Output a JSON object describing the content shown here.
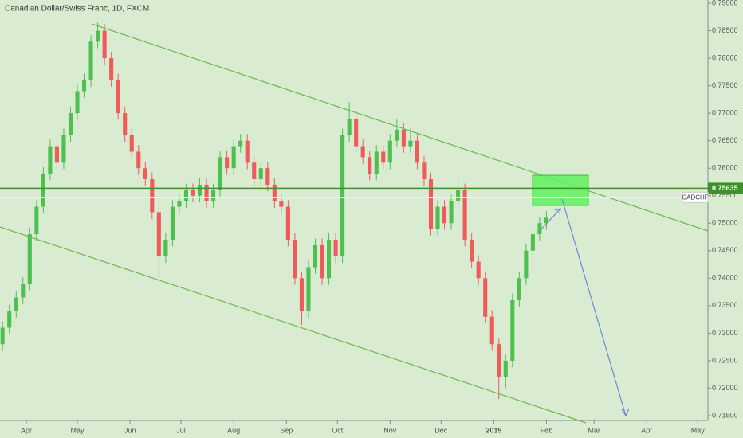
{
  "chart_data": {
    "type": "candlestick",
    "title": "Canadian Dollar/Swiss Franc, 1D, FXCM",
    "symbol": "CADCHF",
    "up_color": "#4fbf4f",
    "down_color": "#ef5b5b",
    "xlim": [
      -15.5,
      401
    ],
    "xticks": [
      {
        "value": 0,
        "label": "Apr"
      },
      {
        "value": 30,
        "label": "May"
      },
      {
        "value": 61,
        "label": "Jun"
      },
      {
        "value": 91,
        "label": "Jul"
      },
      {
        "value": 122,
        "label": "Aug"
      },
      {
        "value": 153,
        "label": "Sep"
      },
      {
        "value": 183,
        "label": "Oct"
      },
      {
        "value": 214,
        "label": "Nov"
      },
      {
        "value": 244,
        "label": "Dec"
      },
      {
        "value": 275,
        "label": "2019"
      },
      {
        "value": 306,
        "label": "Feb"
      },
      {
        "value": 334,
        "label": "Mar"
      },
      {
        "value": 365,
        "label": "Apr"
      },
      {
        "value": 395,
        "label": "May"
      }
    ],
    "ylim": [
      0.715,
      0.79
    ],
    "yticks": [
      {
        "value": 0.79,
        "label": "0.79000"
      },
      {
        "value": 0.785,
        "label": "0.78500"
      },
      {
        "value": 0.78,
        "label": "0.78000"
      },
      {
        "value": 0.775,
        "label": "0.77500"
      },
      {
        "value": 0.77,
        "label": "0.77000"
      },
      {
        "value": 0.765,
        "label": "0.76500"
      },
      {
        "value": 0.76,
        "label": "0.76000"
      },
      {
        "value": 0.755,
        "label": "0.75500"
      },
      {
        "value": 0.75,
        "label": "0.75000"
      },
      {
        "value": 0.745,
        "label": "0.74500"
      },
      {
        "value": 0.74,
        "label": "0.74000"
      },
      {
        "value": 0.735,
        "label": "0.73500"
      },
      {
        "value": 0.73,
        "label": "0.73000"
      },
      {
        "value": 0.725,
        "label": "0.72500"
      },
      {
        "value": 0.72,
        "label": "0.72000"
      },
      {
        "value": 0.715,
        "label": "0.71500"
      }
    ],
    "price_line": {
      "value": 0.75635,
      "label": "0.75635"
    },
    "x": [
      -14,
      -10,
      -6,
      -2,
      2,
      6,
      10,
      14,
      18,
      22,
      26,
      30,
      34,
      38,
      42,
      46,
      50,
      54,
      58,
      62,
      66,
      70,
      74,
      78,
      82,
      86,
      90,
      94,
      98,
      102,
      106,
      110,
      114,
      118,
      122,
      126,
      130,
      134,
      138,
      142,
      146,
      150,
      154,
      158,
      162,
      166,
      170,
      174,
      178,
      182,
      186,
      190,
      194,
      198,
      202,
      206,
      210,
      214,
      218,
      222,
      226,
      230,
      234,
      238,
      242,
      246,
      250,
      254,
      258,
      262,
      266,
      270,
      274,
      278,
      282,
      286,
      290,
      294,
      298,
      302,
      306
    ],
    "open": [
      0.728,
      0.731,
      0.734,
      0.7365,
      0.739,
      0.748,
      0.753,
      0.759,
      0.764,
      0.761,
      0.766,
      0.77,
      0.774,
      0.776,
      0.783,
      0.785,
      0.78,
      0.776,
      0.77,
      0.766,
      0.763,
      0.76,
      0.758,
      0.752,
      0.744,
      0.747,
      0.753,
      0.754,
      0.756,
      0.755,
      0.757,
      0.754,
      0.756,
      0.762,
      0.76,
      0.764,
      0.765,
      0.761,
      0.758,
      0.76,
      0.757,
      0.754,
      0.753,
      0.747,
      0.74,
      0.734,
      0.742,
      0.746,
      0.74,
      0.747,
      0.744,
      0.766,
      0.769,
      0.764,
      0.762,
      0.759,
      0.763,
      0.761,
      0.765,
      0.767,
      0.764,
      0.765,
      0.761,
      0.758,
      0.749,
      0.753,
      0.75,
      0.754,
      0.756,
      0.747,
      0.743,
      0.74,
      0.733,
      0.728,
      0.722,
      0.725,
      0.736,
      0.74,
      0.745,
      0.748,
      0.75
    ],
    "high": [
      0.7322,
      0.7352,
      0.7377,
      0.7402,
      0.7492,
      0.7542,
      0.7602,
      0.7652,
      0.7652,
      0.7672,
      0.7712,
      0.7752,
      0.7772,
      0.7842,
      0.7865,
      0.7862,
      0.7812,
      0.7772,
      0.7712,
      0.7672,
      0.7642,
      0.7612,
      0.7592,
      0.7532,
      0.7482,
      0.7542,
      0.7552,
      0.7572,
      0.7572,
      0.7582,
      0.7582,
      0.7572,
      0.7632,
      0.7632,
      0.7652,
      0.7662,
      0.7662,
      0.7622,
      0.7612,
      0.7612,
      0.7582,
      0.7552,
      0.7542,
      0.7482,
      0.7412,
      0.7432,
      0.7472,
      0.7472,
      0.7482,
      0.7482,
      0.7672,
      0.772,
      0.7702,
      0.7652,
      0.7632,
      0.7642,
      0.7642,
      0.7662,
      0.769,
      0.7682,
      0.7672,
      0.7662,
      0.7622,
      0.7592,
      0.7542,
      0.7542,
      0.7552,
      0.759,
      0.7572,
      0.7482,
      0.7442,
      0.7412,
      0.7342,
      0.7292,
      0.7262,
      0.7372,
      0.7412,
      0.7462,
      0.7492,
      0.7512,
      0.7522
    ],
    "low": [
      0.7268,
      0.7298,
      0.7328,
      0.7353,
      0.7378,
      0.7468,
      0.7518,
      0.7578,
      0.7598,
      0.7598,
      0.7648,
      0.7688,
      0.7728,
      0.7748,
      0.7818,
      0.7788,
      0.7748,
      0.7688,
      0.7648,
      0.7618,
      0.7588,
      0.7568,
      0.7508,
      0.74,
      0.7428,
      0.7458,
      0.7518,
      0.7528,
      0.7538,
      0.7538,
      0.7528,
      0.7528,
      0.7548,
      0.7588,
      0.7588,
      0.7628,
      0.7598,
      0.7568,
      0.7568,
      0.7558,
      0.7528,
      0.7518,
      0.7458,
      0.7388,
      0.7315,
      0.7328,
      0.7408,
      0.7388,
      0.7388,
      0.7428,
      0.7428,
      0.7648,
      0.7628,
      0.7608,
      0.7578,
      0.7578,
      0.7598,
      0.7598,
      0.7638,
      0.7628,
      0.7628,
      0.7598,
      0.7568,
      0.7478,
      0.7478,
      0.7488,
      0.7488,
      0.7528,
      0.7458,
      0.7418,
      0.7388,
      0.7318,
      0.7268,
      0.718,
      0.72,
      0.7238,
      0.7348,
      0.7388,
      0.7438,
      0.7468,
      0.7488
    ],
    "close": [
      0.731,
      0.734,
      0.7365,
      0.739,
      0.748,
      0.753,
      0.759,
      0.764,
      0.761,
      0.766,
      0.77,
      0.774,
      0.776,
      0.783,
      0.785,
      0.78,
      0.776,
      0.77,
      0.766,
      0.763,
      0.76,
      0.758,
      0.752,
      0.744,
      0.747,
      0.753,
      0.754,
      0.756,
      0.755,
      0.757,
      0.754,
      0.756,
      0.762,
      0.76,
      0.764,
      0.765,
      0.761,
      0.758,
      0.76,
      0.757,
      0.754,
      0.753,
      0.747,
      0.74,
      0.734,
      0.742,
      0.746,
      0.74,
      0.747,
      0.744,
      0.766,
      0.769,
      0.764,
      0.762,
      0.759,
      0.763,
      0.761,
      0.765,
      0.767,
      0.764,
      0.765,
      0.761,
      0.758,
      0.749,
      0.753,
      0.75,
      0.754,
      0.756,
      0.747,
      0.743,
      0.74,
      0.733,
      0.728,
      0.722,
      0.725,
      0.736,
      0.74,
      0.745,
      0.748,
      0.75,
      0.751
    ]
  }
}
